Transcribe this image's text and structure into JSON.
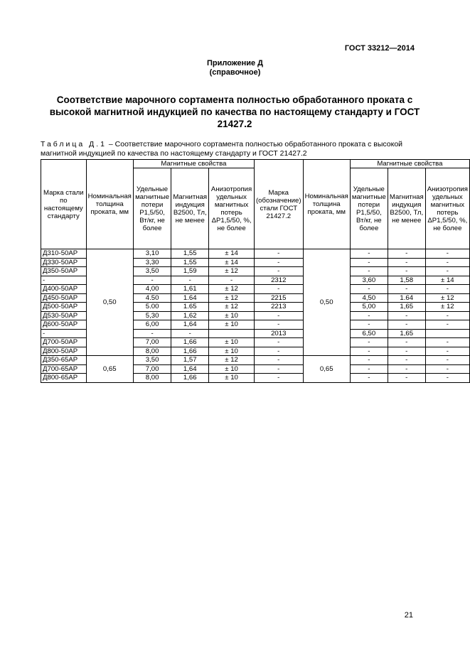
{
  "header": {
    "standard": "ГОСТ 33212—2014"
  },
  "appendix": {
    "title": "Приложение Д",
    "note": "(справочное)"
  },
  "title": "Соответствие марочного сортамента полностью обработанного проката с высокой магнитной индукцией по качества по настоящему стандарту и ГОСТ 21427.2",
  "caption": {
    "label": "Таблица Д.1",
    "text": " – Соответствие марочного сортамента полностью обработанного  проката с высокой магнитной индукцией по качества по настоящему стандарту и ГОСТ 21427.2"
  },
  "table": {
    "group_left": "Магнитные свойства",
    "group_right": "Магнитные свойства",
    "h": [
      "Марка стали по настоящему стандарту",
      "Номинальная толщина проката, мм",
      "Удельные магнитные потери P1,5/50, Вт/кг, не более",
      "Магнитная индукция B2500, Тл, не менее",
      "Анизотропия удельных магнитных потерь ΔP1,5/50, %, не более",
      "Марка (обозначение) стали ГОСТ 21427.2",
      "Номинальная толщина проката, мм",
      "Удельные магнитные потери P1,5/50, Вт/кг, не более",
      "Магнитная индукция B2500, Тл, не менее",
      "Анизотропия удельных магнитных потерь ΔP1,5/50, %, не более"
    ],
    "thickness_050": "0,50",
    "thickness_065": "0,65",
    "rows": [
      [
        "Д310-50АР",
        "3,10",
        "1,55",
        "± 14",
        "-",
        "-",
        "-",
        "-"
      ],
      [
        "Д330-50АР",
        "3,30",
        "1,55",
        "± 14",
        "-",
        "-",
        "-",
        "-"
      ],
      [
        "Д350-50АР",
        "3,50",
        "1,59",
        "± 12",
        "-",
        "-",
        "-",
        "-"
      ],
      [
        "-",
        "-",
        "-",
        "-",
        "2312",
        "3,60",
        "1,58",
        "± 14"
      ],
      [
        "Д400-50АР",
        "4,00",
        "1,61",
        "± 12",
        "-",
        "-",
        "-",
        "-"
      ],
      [
        "Д450-50АР",
        "4.50",
        "1.64",
        "± 12",
        "2215",
        "4,50",
        "1.64",
        "± 12"
      ],
      [
        "Д500-50АР",
        "5.00",
        "1.65",
        "± 12",
        "2213",
        "5,00",
        "1,65",
        "± 12"
      ],
      [
        "Д530-50АР",
        "5,30",
        "1,62",
        "± 10",
        "-",
        "-",
        "-",
        "-"
      ],
      [
        "Д600-50АР",
        "6,00",
        "1,64",
        "± 10",
        "-",
        "-",
        "-",
        "-"
      ],
      [
        "-",
        "-",
        "-",
        "",
        "2013",
        "6,50",
        "1,65",
        ""
      ],
      [
        "Д700-50АР",
        "7,00",
        "1,66",
        "± 10",
        "-",
        "-",
        "-",
        "-"
      ],
      [
        "Д800-50АР",
        "8,00",
        "1,66",
        "± 10",
        "-",
        "-",
        "-",
        "-"
      ],
      [
        "Д350-65АР",
        "3,50",
        "1,57",
        "± 12",
        "-",
        "-",
        "-",
        "-"
      ],
      [
        "Д700-65АР",
        "7,00",
        "1,64",
        "± 10",
        "-",
        "-",
        "-",
        "-"
      ],
      [
        "Д800-65АР",
        "8,00",
        "1,66",
        "± 10",
        "-",
        "-",
        "-",
        "-"
      ]
    ]
  },
  "page_number": "21"
}
